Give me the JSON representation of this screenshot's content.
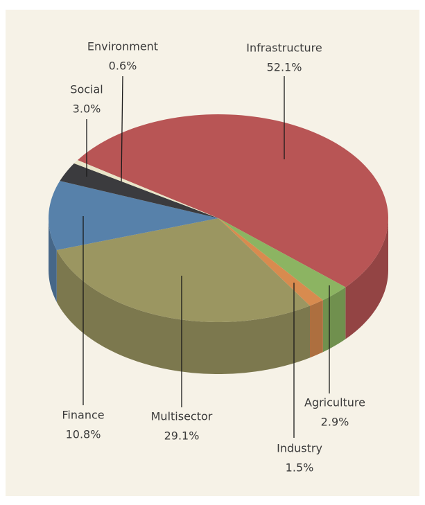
{
  "chart_data": {
    "type": "pie",
    "categories": [
      "Infrastructure",
      "Agriculture",
      "Industry",
      "Multisector",
      "Finance",
      "Social",
      "Environment"
    ],
    "values": [
      52.1,
      2.9,
      1.5,
      29.1,
      10.8,
      3.0,
      0.6
    ],
    "value_labels": [
      "52.1%",
      "2.9%",
      "1.5%",
      "29.1%",
      "10.8%",
      "3.0%",
      "0.6%"
    ],
    "colors": [
      "#b85555",
      "#8cb462",
      "#d88b4f",
      "#9b9661",
      "#5781aa",
      "#3b3b3e",
      "#e9e5c9"
    ]
  }
}
